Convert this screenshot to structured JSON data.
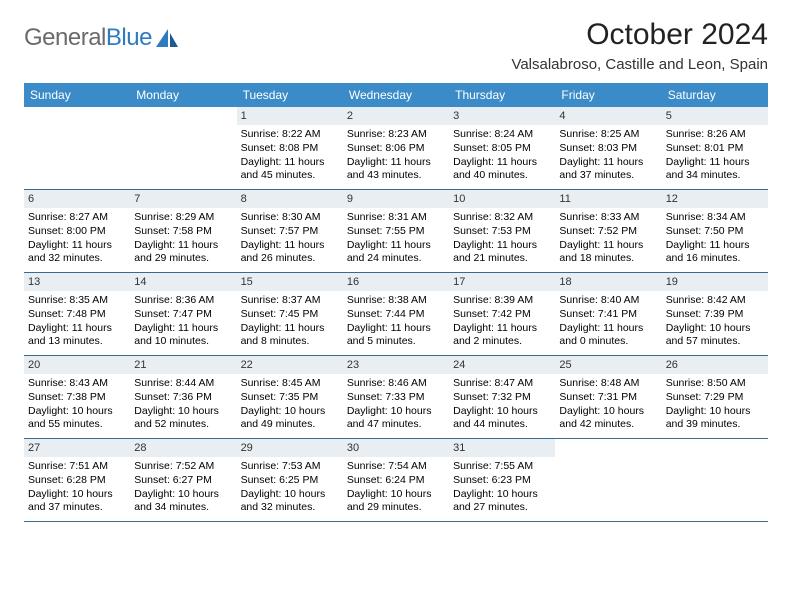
{
  "logo": {
    "text_gray": "General",
    "text_blue": "Blue"
  },
  "title": "October 2024",
  "location": "Valsalabroso, Castille and Leon, Spain",
  "colors": {
    "header_bg": "#3b8bc8",
    "header_text": "#ffffff",
    "daynum_bg": "#e9eef2",
    "border": "#3b6a8f",
    "logo_gray": "#6a6a6a",
    "logo_blue": "#2f7bbf"
  },
  "dow": [
    "Sunday",
    "Monday",
    "Tuesday",
    "Wednesday",
    "Thursday",
    "Friday",
    "Saturday"
  ],
  "weeks": [
    [
      null,
      null,
      {
        "n": "1",
        "rise": "Sunrise: 8:22 AM",
        "set": "Sunset: 8:08 PM",
        "dl": "Daylight: 11 hours and 45 minutes."
      },
      {
        "n": "2",
        "rise": "Sunrise: 8:23 AM",
        "set": "Sunset: 8:06 PM",
        "dl": "Daylight: 11 hours and 43 minutes."
      },
      {
        "n": "3",
        "rise": "Sunrise: 8:24 AM",
        "set": "Sunset: 8:05 PM",
        "dl": "Daylight: 11 hours and 40 minutes."
      },
      {
        "n": "4",
        "rise": "Sunrise: 8:25 AM",
        "set": "Sunset: 8:03 PM",
        "dl": "Daylight: 11 hours and 37 minutes."
      },
      {
        "n": "5",
        "rise": "Sunrise: 8:26 AM",
        "set": "Sunset: 8:01 PM",
        "dl": "Daylight: 11 hours and 34 minutes."
      }
    ],
    [
      {
        "n": "6",
        "rise": "Sunrise: 8:27 AM",
        "set": "Sunset: 8:00 PM",
        "dl": "Daylight: 11 hours and 32 minutes."
      },
      {
        "n": "7",
        "rise": "Sunrise: 8:29 AM",
        "set": "Sunset: 7:58 PM",
        "dl": "Daylight: 11 hours and 29 minutes."
      },
      {
        "n": "8",
        "rise": "Sunrise: 8:30 AM",
        "set": "Sunset: 7:57 PM",
        "dl": "Daylight: 11 hours and 26 minutes."
      },
      {
        "n": "9",
        "rise": "Sunrise: 8:31 AM",
        "set": "Sunset: 7:55 PM",
        "dl": "Daylight: 11 hours and 24 minutes."
      },
      {
        "n": "10",
        "rise": "Sunrise: 8:32 AM",
        "set": "Sunset: 7:53 PM",
        "dl": "Daylight: 11 hours and 21 minutes."
      },
      {
        "n": "11",
        "rise": "Sunrise: 8:33 AM",
        "set": "Sunset: 7:52 PM",
        "dl": "Daylight: 11 hours and 18 minutes."
      },
      {
        "n": "12",
        "rise": "Sunrise: 8:34 AM",
        "set": "Sunset: 7:50 PM",
        "dl": "Daylight: 11 hours and 16 minutes."
      }
    ],
    [
      {
        "n": "13",
        "rise": "Sunrise: 8:35 AM",
        "set": "Sunset: 7:48 PM",
        "dl": "Daylight: 11 hours and 13 minutes."
      },
      {
        "n": "14",
        "rise": "Sunrise: 8:36 AM",
        "set": "Sunset: 7:47 PM",
        "dl": "Daylight: 11 hours and 10 minutes."
      },
      {
        "n": "15",
        "rise": "Sunrise: 8:37 AM",
        "set": "Sunset: 7:45 PM",
        "dl": "Daylight: 11 hours and 8 minutes."
      },
      {
        "n": "16",
        "rise": "Sunrise: 8:38 AM",
        "set": "Sunset: 7:44 PM",
        "dl": "Daylight: 11 hours and 5 minutes."
      },
      {
        "n": "17",
        "rise": "Sunrise: 8:39 AM",
        "set": "Sunset: 7:42 PM",
        "dl": "Daylight: 11 hours and 2 minutes."
      },
      {
        "n": "18",
        "rise": "Sunrise: 8:40 AM",
        "set": "Sunset: 7:41 PM",
        "dl": "Daylight: 11 hours and 0 minutes."
      },
      {
        "n": "19",
        "rise": "Sunrise: 8:42 AM",
        "set": "Sunset: 7:39 PM",
        "dl": "Daylight: 10 hours and 57 minutes."
      }
    ],
    [
      {
        "n": "20",
        "rise": "Sunrise: 8:43 AM",
        "set": "Sunset: 7:38 PM",
        "dl": "Daylight: 10 hours and 55 minutes."
      },
      {
        "n": "21",
        "rise": "Sunrise: 8:44 AM",
        "set": "Sunset: 7:36 PM",
        "dl": "Daylight: 10 hours and 52 minutes."
      },
      {
        "n": "22",
        "rise": "Sunrise: 8:45 AM",
        "set": "Sunset: 7:35 PM",
        "dl": "Daylight: 10 hours and 49 minutes."
      },
      {
        "n": "23",
        "rise": "Sunrise: 8:46 AM",
        "set": "Sunset: 7:33 PM",
        "dl": "Daylight: 10 hours and 47 minutes."
      },
      {
        "n": "24",
        "rise": "Sunrise: 8:47 AM",
        "set": "Sunset: 7:32 PM",
        "dl": "Daylight: 10 hours and 44 minutes."
      },
      {
        "n": "25",
        "rise": "Sunrise: 8:48 AM",
        "set": "Sunset: 7:31 PM",
        "dl": "Daylight: 10 hours and 42 minutes."
      },
      {
        "n": "26",
        "rise": "Sunrise: 8:50 AM",
        "set": "Sunset: 7:29 PM",
        "dl": "Daylight: 10 hours and 39 minutes."
      }
    ],
    [
      {
        "n": "27",
        "rise": "Sunrise: 7:51 AM",
        "set": "Sunset: 6:28 PM",
        "dl": "Daylight: 10 hours and 37 minutes."
      },
      {
        "n": "28",
        "rise": "Sunrise: 7:52 AM",
        "set": "Sunset: 6:27 PM",
        "dl": "Daylight: 10 hours and 34 minutes."
      },
      {
        "n": "29",
        "rise": "Sunrise: 7:53 AM",
        "set": "Sunset: 6:25 PM",
        "dl": "Daylight: 10 hours and 32 minutes."
      },
      {
        "n": "30",
        "rise": "Sunrise: 7:54 AM",
        "set": "Sunset: 6:24 PM",
        "dl": "Daylight: 10 hours and 29 minutes."
      },
      {
        "n": "31",
        "rise": "Sunrise: 7:55 AM",
        "set": "Sunset: 6:23 PM",
        "dl": "Daylight: 10 hours and 27 minutes."
      },
      null,
      null
    ]
  ]
}
